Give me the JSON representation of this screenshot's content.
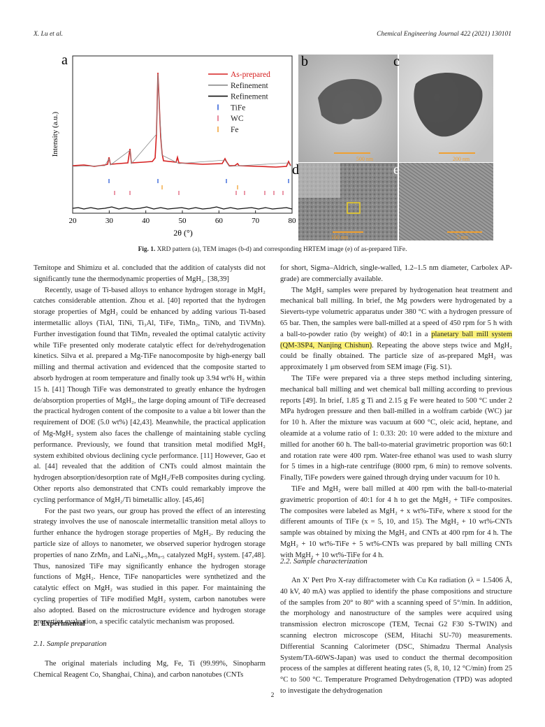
{
  "header": {
    "left": "X. Lu et al.",
    "right": "Chemical Engineering Journal 422 (2021) 130101"
  },
  "figure": {
    "panel_labels": [
      "a",
      "b",
      "c",
      "d",
      "e"
    ],
    "panel_a": {
      "ylabel": "Intensity (a.u.)",
      "xlabel": "2θ (°)",
      "xlim": [
        20,
        80
      ],
      "xticks": [
        20,
        30,
        40,
        50,
        60,
        70,
        80
      ],
      "legend": [
        {
          "name": "As-prepared",
          "color": "#d62020"
        },
        {
          "name": "Refinement",
          "color": "#8a8a8a"
        },
        {
          "name": "Refinement",
          "color": "#111111"
        },
        {
          "name": "TiFe",
          "color": "#2a5bd7"
        },
        {
          "name": "WC",
          "color": "#e0607a"
        },
        {
          "name": "Fe",
          "color": "#f0a030"
        }
      ]
    },
    "scale_bars": [
      "500 nm",
      "200 nm",
      "100 nm",
      "5 nm"
    ],
    "caption_label": "Fig. 1.",
    "caption": "XRD pattern (a), TEM images (b-d) and corresponding HRTEM image (e) of as-prepared TiFe."
  },
  "left_column": {
    "paragraphs": [
      "Temitope and Shimizu et al. concluded that the addition of catalysts did not significantly tune the thermodynamic properties of MgH₂. [38,39]",
      "Recently, usage of Ti-based alloys to enhance hydrogen storage in MgH₂ catches considerable attention. Zhou et al. [40] reported that the hydrogen storage properties of MgH₂ could be enhanced by adding various Ti-based intermetallic alloys (TiAl, TiNi, Ti₃Al, TiFe, TiMn₂, TiNb, and TiVMn). Further investigation found that TiMn₂ revealed the optimal catalytic activity while TiFe presented only moderate catalytic effect for de/rehydrogenation kinetics. Silva et al. prepared a Mg-TiFe nanocomposite by high-energy ball milling and thermal activation and evidenced that the composite started to absorb hydrogen at room temperature and finally took up 3.94 wt% H₂ within 15 h. [41] Though TiFe was demonstrated to greatly enhance the hydrogen de/absorption properties of MgH₂, the large doping amount of TiFe decreased the practical hydrogen content of the composite to a value a bit lower than the requirement of DOE (5.0 wt%) [42,43]. Meanwhile, the practical application of Mg-MgH₂ system also faces the challenge of maintaining stable cycling performance. Previously, we found that transition metal modified MgH₂ system exhibited obvious declining cycle performance. [11] However, Gao et al. [44] revealed that the addition of CNTs could almost maintain the hydrogen absorption/desorption rate of MgH₂/FeB composites during cycling. Other reports also demonstrated that CNTs could remarkably improve the cycling performance of MgH₂/Ti bimetallic alloy. [45,46]",
      "For the past two years, our group has proved the effect of an interesting strategy involves the use of nanoscale intermetallic transition metal alloys to further enhance the hydrogen storage properties of MgH₂. By reducing the particle size of alloys to nanometer, we observed superior hydrogen storage properties of nano ZrMn₂ and LaNi₄.₅Mn₀.₅ catalyzed MgH₂ system. [47,48]. Thus, nanosized TiFe may significantly enhance the hydrogen storage functions of MgH₂. Hence, TiFe nanoparticles were synthetized and the catalytic effect on MgH₂ was studied in this paper. For maintaining the cycling properties of TiFe modified MgH₂ system, carbon nanotubes were also adopted. Based on the microstructure evidence and hydrogen storage properties evaluation, a specific catalytic mechanism was proposed."
    ],
    "section_heading": "2. Experimental",
    "subsection_heading": "2.1. Sample preparation",
    "last_paragraph": "The original materials including Mg, Fe, Ti (99.99%, Sinopharm Chemical Reagent Co, Shanghai, China), and carbon nanotubes (CNTs"
  },
  "right_column": {
    "first_paragraph": "for short, Sigma–Aldrich, single-walled, 1.2–1.5 nm diameter, Carbolex AP-grade) are commercially available.",
    "highlighted_paragraph": {
      "before": "The MgH₂ samples were prepared by hydrogenation heat treatment and mechanical ball milling. In brief, the Mg powders were hydrogenated by a Sieverts-type volumetric apparatus under 380 °C with a hydrogen pressure of 65 bar. Then, the samples were ball-milled at a speed of 450 rpm for 5 h with a ball-to-powder ratio (by weight) of 40:1 in a ",
      "highlight": "planetary ball mill system (QM-3SP4, Nanjing Chishun)",
      "after": ". Repeating the above steps twice and MgH₂ could be finally obtained. The particle size of as-prepared MgH₂ was approximately 1 μm observed from SEM image (Fig. S1)."
    },
    "paragraphs": [
      "The TiFe were prepared via a three steps method including sintering, mechanical ball milling and wet chemical ball milling according to previous reports [49]. In brief, 1.85 g Ti and 2.15 g Fe were heated to 500 °C under 2 MPa hydrogen pressure and then ball-milled in a wolfram carbide (WC) jar for 10 h. After the mixture was vacuum at 600 °C, oleic acid, heptane, and oleamide at a volume ratio of 1: 0.33: 20: 10 were added to the mixture and milled for another 60 h. The ball-to-material gravimetric proportion was 60:1 and rotation rate were 400 rpm. Water-free ethanol was used to wash slurry for 5 times in a high-rate centrifuge (8000 rpm, 6 min) to remove solvents. Finally, TiFe powders were gained through drying under vacuum for 10 h.",
      "TiFe and MgH₂ were ball milled at 400 rpm with the ball-to-material gravimetric proportion of 40:1 for 4 h to get the MgH₂ + TiFe composites. The composites were labeled as MgH₂ + x wt%-TiFe, where x stood for the different amounts of TiFe (x = 5, 10, and 15). The MgH₂ + 10 wt%-CNTs sample was obtained by mixing the MgH₂ and CNTs at 400 rpm for 4 h. The MgH₂ + 10 wt%-TiFe + 5 wt%-CNTs was prepared by ball milling CNTs with MgH₂ + 10 wt%-TiFe for 4 h."
    ],
    "subsection_heading": "2.2. Sample characterization",
    "last_paragraph": "An X' Pert Pro X-ray diffractometer with Cu Kα radiation (λ = 1.5406 Å, 40 kV, 40 mA) was applied to identify the phase compositions and structure of the samples from 20° to 80° with a scanning speed of 5°/min. In addition, the morphology and nanostructure of the samples were acquired using transmission electron microscope (TEM, Tecnai G2 F30 S-TWIN) and scanning electron microscope (SEM, Hitachi SU-70) measurements. Differential Scanning Calorimeter (DSC, Shimadzu Thermal Analysis System/TA-60WS-Japan) was used to conduct the thermal decomposition process of the samples at different heating rates (5, 8, 10, 12 °C/min) from 25 °C to 500 °C. Temperature Programed Dehydrogenation (TPD) was adopted to investigate the dehydrogenation"
  },
  "page_number": "2"
}
